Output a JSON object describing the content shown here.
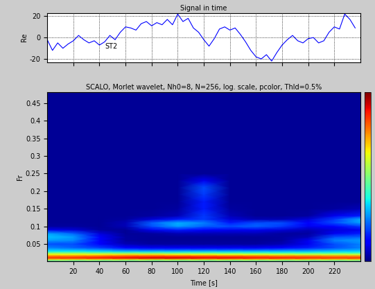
{
  "chart_data": [
    {
      "type": "line",
      "title": "Signal in time",
      "y_label": "Re",
      "x": [
        0,
        4,
        8,
        12,
        16,
        20,
        24,
        28,
        32,
        36,
        40,
        44,
        48,
        52,
        56,
        60,
        64,
        68,
        72,
        76,
        80,
        84,
        88,
        92,
        96,
        100,
        104,
        108,
        112,
        116,
        120,
        124,
        128,
        132,
        136,
        140,
        144,
        148,
        152,
        156,
        160,
        164,
        168,
        172,
        176,
        180,
        184,
        188,
        192,
        196,
        200,
        204,
        208,
        212,
        216,
        220,
        224,
        228,
        232,
        236
      ],
      "values": [
        -2,
        -12,
        -5,
        -10,
        -6,
        -3,
        2,
        -2,
        -5,
        -3,
        -7,
        -4,
        2,
        -2,
        5,
        10,
        9,
        7,
        13,
        15,
        11,
        14,
        12,
        17,
        12,
        22,
        15,
        18,
        9,
        5,
        -2,
        -8,
        -1,
        8,
        10,
        7,
        9,
        3,
        -4,
        -12,
        -18,
        -20,
        -16,
        -22,
        -14,
        -7,
        -2,
        2,
        -3,
        -5,
        -1,
        0,
        -5,
        -3,
        5,
        10,
        8,
        22,
        17,
        9
      ],
      "color": "#0000ff",
      "annotations": [
        {
          "text": "ST2",
          "x": 44,
          "y": -8
        }
      ],
      "xlim": [
        0,
        240
      ],
      "xticks": [
        20,
        40,
        60,
        80,
        100,
        120,
        140,
        160,
        180,
        200,
        220
      ],
      "ylim": [
        -23,
        23
      ],
      "yticks": [
        -20,
        0,
        20
      ],
      "grid": true,
      "tick_labels": "y"
    },
    {
      "type": "heatmap",
      "title": "SCALO, Morlet wavelet, Nh0=8, N=256, log. scale, pcolor, Thld=0.5%",
      "x_label": "Time [s]",
      "y_label": "Fr",
      "time": [
        0,
        20,
        40,
        60,
        80,
        100,
        120,
        140,
        160,
        180,
        200,
        220,
        240
      ],
      "frequency": [
        0,
        0.005,
        0.01,
        0.015,
        0.02,
        0.025,
        0.03,
        0.035,
        0.04,
        0.05,
        0.06,
        0.07,
        0.08,
        0.09,
        0.1,
        0.11,
        0.12,
        0.13,
        0.15,
        0.17,
        0.19,
        0.21,
        0.23,
        0.25,
        0.3,
        0.4,
        0.5
      ],
      "cells": [
        [
          0.3,
          0.3,
          0.3,
          0.3,
          0.3,
          0.3,
          0.3,
          0.3,
          0.3,
          0.3,
          0.3,
          0.3,
          0.3
        ],
        [
          0.6,
          0.6,
          0.6,
          0.6,
          0.6,
          0.6,
          0.6,
          0.6,
          0.6,
          0.6,
          0.6,
          0.6,
          0.6
        ],
        [
          0.85,
          0.86,
          0.88,
          0.9,
          0.92,
          0.92,
          0.9,
          0.9,
          0.88,
          0.88,
          0.86,
          0.85,
          0.85
        ],
        [
          0.8,
          0.8,
          0.82,
          0.84,
          0.85,
          0.85,
          0.84,
          0.83,
          0.82,
          0.8,
          0.8,
          0.78,
          0.78
        ],
        [
          0.65,
          0.65,
          0.66,
          0.68,
          0.68,
          0.66,
          0.65,
          0.64,
          0.63,
          0.62,
          0.6,
          0.6,
          0.6
        ],
        [
          0.5,
          0.5,
          0.48,
          0.47,
          0.46,
          0.45,
          0.45,
          0.44,
          0.43,
          0.42,
          0.42,
          0.42,
          0.42
        ],
        [
          0.35,
          0.35,
          0.33,
          0.3,
          0.3,
          0.3,
          0.3,
          0.3,
          0.3,
          0.3,
          0.3,
          0.32,
          0.33
        ],
        [
          0.3,
          0.28,
          0.25,
          0.2,
          0.18,
          0.18,
          0.18,
          0.18,
          0.18,
          0.2,
          0.22,
          0.25,
          0.28
        ],
        [
          0.25,
          0.22,
          0.18,
          0.12,
          0.1,
          0.1,
          0.1,
          0.1,
          0.1,
          0.12,
          0.15,
          0.2,
          0.25
        ],
        [
          0.2,
          0.2,
          0.12,
          0.05,
          0.03,
          0.03,
          0.03,
          0.03,
          0.03,
          0.05,
          0.1,
          0.2,
          0.25
        ],
        [
          0.28,
          0.26,
          0.12,
          0.03,
          0.02,
          0.02,
          0.02,
          0.02,
          0.02,
          0.03,
          0.1,
          0.25,
          0.28
        ],
        [
          0.32,
          0.28,
          0.12,
          0.03,
          0.02,
          0.02,
          0.02,
          0.02,
          0.02,
          0.03,
          0.05,
          0.2,
          0.22
        ],
        [
          0.28,
          0.22,
          0.08,
          0.02,
          0.03,
          0.05,
          0.05,
          0.05,
          0.05,
          0.03,
          0.03,
          0.1,
          0.15
        ],
        [
          0.1,
          0.08,
          0.03,
          0.02,
          0.1,
          0.15,
          0.12,
          0.1,
          0.1,
          0.08,
          0.05,
          0.08,
          0.1
        ],
        [
          0.03,
          0.03,
          0.02,
          0.05,
          0.2,
          0.28,
          0.22,
          0.2,
          0.22,
          0.18,
          0.1,
          0.12,
          0.18
        ],
        [
          0.02,
          0.02,
          0.02,
          0.05,
          0.22,
          0.3,
          0.25,
          0.15,
          0.2,
          0.2,
          0.12,
          0.2,
          0.28
        ],
        [
          0.02,
          0.02,
          0.02,
          0.03,
          0.08,
          0.15,
          0.18,
          0.08,
          0.05,
          0.05,
          0.08,
          0.18,
          0.3
        ],
        [
          0.02,
          0.02,
          0.02,
          0.02,
          0.03,
          0.05,
          0.18,
          0.05,
          0.02,
          0.02,
          0.03,
          0.1,
          0.15
        ],
        [
          0.02,
          0.02,
          0.02,
          0.02,
          0.02,
          0.03,
          0.15,
          0.03,
          0.02,
          0.02,
          0.02,
          0.03,
          0.05
        ],
        [
          0.02,
          0.02,
          0.02,
          0.02,
          0.02,
          0.02,
          0.15,
          0.02,
          0.02,
          0.02,
          0.02,
          0.02,
          0.02
        ],
        [
          0.02,
          0.02,
          0.02,
          0.02,
          0.02,
          0.02,
          0.18,
          0.02,
          0.02,
          0.02,
          0.02,
          0.02,
          0.02
        ],
        [
          0.02,
          0.02,
          0.02,
          0.02,
          0.02,
          0.02,
          0.2,
          0.02,
          0.02,
          0.02,
          0.02,
          0.02,
          0.02
        ],
        [
          0.02,
          0.02,
          0.02,
          0.02,
          0.02,
          0.02,
          0.1,
          0.02,
          0.02,
          0.02,
          0.02,
          0.02,
          0.02
        ],
        [
          0.02,
          0.02,
          0.02,
          0.02,
          0.02,
          0.02,
          0.02,
          0.02,
          0.02,
          0.02,
          0.02,
          0.02,
          0.02
        ],
        [
          0.02,
          0.02,
          0.02,
          0.02,
          0.02,
          0.02,
          0.02,
          0.02,
          0.02,
          0.02,
          0.02,
          0.02,
          0.02
        ],
        [
          0.02,
          0.02,
          0.02,
          0.02,
          0.02,
          0.02,
          0.02,
          0.02,
          0.02,
          0.02,
          0.02,
          0.02,
          0.02
        ],
        [
          0.02,
          0.02,
          0.02,
          0.02,
          0.02,
          0.02,
          0.02,
          0.02,
          0.02,
          0.02,
          0.02,
          0.02,
          0.02
        ]
      ],
      "color_range": [
        0,
        1
      ],
      "xlim": [
        0,
        240
      ],
      "xticks": [
        20,
        40,
        60,
        80,
        100,
        120,
        140,
        160,
        180,
        200,
        220
      ],
      "ylim": [
        0,
        0.48
      ],
      "yticks": [
        0.05,
        0.1,
        0.15,
        0.2,
        0.25,
        0.3,
        0.35,
        0.4,
        0.45
      ]
    }
  ]
}
